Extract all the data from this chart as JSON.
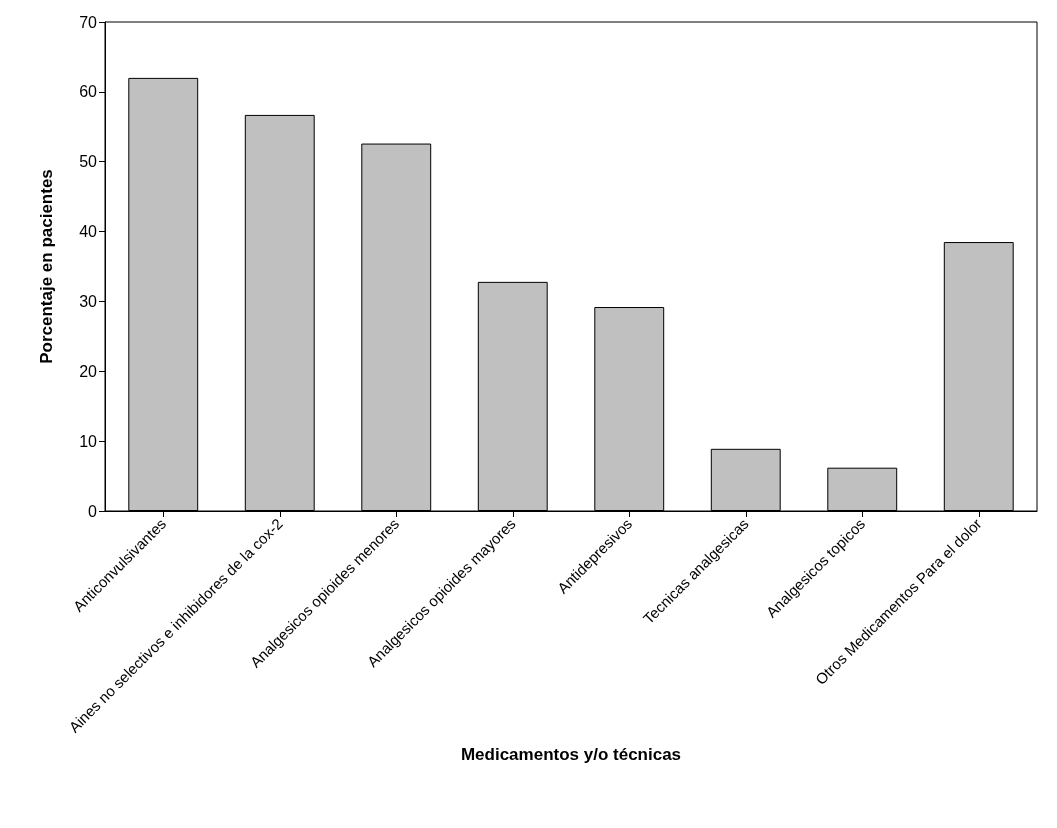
{
  "chart_data": {
    "type": "bar",
    "xlabel": "Medicamentos y/o técnicas",
    "ylabel": "Porcentaje en pacientes",
    "categories": [
      "Anticonvulsivantes",
      "Aines no selectivos e inhibidores de la cox-2",
      "Analgesicos opioides menores",
      "Analgesicos opioides mayores",
      "Antidepresivos",
      "Tecnicas analgesicas",
      "Analgesicos topicos",
      "Otros Medicamentos Para el dolor"
    ],
    "values": [
      62.0,
      56.7,
      52.6,
      32.8,
      29.2,
      8.9,
      6.2,
      38.5
    ],
    "color": "#c0c0c0",
    "ylim": [
      0,
      70
    ],
    "yticks": [
      0,
      10,
      20,
      30,
      40,
      50,
      60,
      70
    ],
    "grid": false
  }
}
